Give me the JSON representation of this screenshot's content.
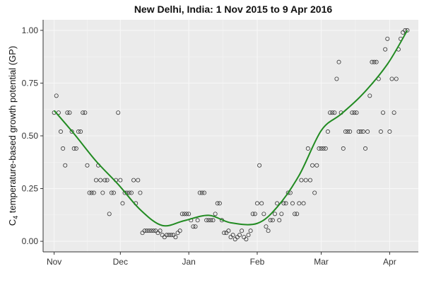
{
  "chart_data": {
    "type": "scatter",
    "title": "New Delhi, India: 1 Nov 2015 to 9 Apr 2016",
    "xlabel": "",
    "ylabel_prefix": "C",
    "ylabel_subscript": "4",
    "ylabel_rest": " temperature-based growth potential (GP)",
    "x_unit": "date",
    "xlim": [
      "2015-10-27",
      "2016-04-14"
    ],
    "ylim": [
      -0.05,
      1.05
    ],
    "x_ticks": [
      {
        "date": "2015-11-01",
        "label": "Nov"
      },
      {
        "date": "2015-12-01",
        "label": "Dec"
      },
      {
        "date": "2016-01-01",
        "label": "Jan"
      },
      {
        "date": "2016-02-01",
        "label": "Feb"
      },
      {
        "date": "2016-03-01",
        "label": "Mar"
      },
      {
        "date": "2016-04-01",
        "label": "Apr"
      }
    ],
    "y_ticks": [
      {
        "value": 0.0,
        "label": "0.00"
      },
      {
        "value": 0.25,
        "label": "0.25"
      },
      {
        "value": 0.5,
        "label": "0.50"
      },
      {
        "value": 0.75,
        "label": "0.75"
      },
      {
        "value": 1.0,
        "label": "1.00"
      }
    ],
    "grid": true,
    "legend": "none",
    "colors": {
      "panel_background": "#ebebeb",
      "grid": "#f7f7f7",
      "points": "#333333",
      "smooth_line": "#228b22",
      "axis": "#333333"
    },
    "points": [
      [
        "2015-11-01",
        0.61
      ],
      [
        "2015-11-02",
        0.69
      ],
      [
        "2015-11-03",
        0.61
      ],
      [
        "2015-11-04",
        0.52
      ],
      [
        "2015-11-05",
        0.44
      ],
      [
        "2015-11-06",
        0.36
      ],
      [
        "2015-11-07",
        0.61
      ],
      [
        "2015-11-08",
        0.61
      ],
      [
        "2015-11-09",
        0.52
      ],
      [
        "2015-11-10",
        0.44
      ],
      [
        "2015-11-11",
        0.44
      ],
      [
        "2015-11-12",
        0.52
      ],
      [
        "2015-11-13",
        0.52
      ],
      [
        "2015-11-14",
        0.61
      ],
      [
        "2015-11-15",
        0.61
      ],
      [
        "2015-11-16",
        0.36
      ],
      [
        "2015-11-17",
        0.23
      ],
      [
        "2015-11-18",
        0.23
      ],
      [
        "2015-11-19",
        0.23
      ],
      [
        "2015-11-20",
        0.29
      ],
      [
        "2015-11-21",
        0.36
      ],
      [
        "2015-11-22",
        0.29
      ],
      [
        "2015-11-23",
        0.23
      ],
      [
        "2015-11-24",
        0.29
      ],
      [
        "2015-11-25",
        0.29
      ],
      [
        "2015-11-26",
        0.13
      ],
      [
        "2015-11-27",
        0.23
      ],
      [
        "2015-11-28",
        0.23
      ],
      [
        "2015-11-29",
        0.29
      ],
      [
        "2015-11-30",
        0.61
      ],
      [
        "2015-12-01",
        0.29
      ],
      [
        "2015-12-02",
        0.18
      ],
      [
        "2015-12-03",
        0.23
      ],
      [
        "2015-12-04",
        0.23
      ],
      [
        "2015-12-05",
        0.23
      ],
      [
        "2015-12-06",
        0.23
      ],
      [
        "2015-12-07",
        0.29
      ],
      [
        "2015-12-08",
        0.18
      ],
      [
        "2015-12-09",
        0.29
      ],
      [
        "2015-12-10",
        0.23
      ],
      [
        "2015-12-11",
        0.04
      ],
      [
        "2015-12-12",
        0.05
      ],
      [
        "2015-12-13",
        0.05
      ],
      [
        "2015-12-14",
        0.05
      ],
      [
        "2015-12-15",
        0.05
      ],
      [
        "2015-12-16",
        0.05
      ],
      [
        "2015-12-17",
        0.05
      ],
      [
        "2015-12-18",
        0.04
      ],
      [
        "2015-12-19",
        0.05
      ],
      [
        "2015-12-20",
        0.03
      ],
      [
        "2015-12-21",
        0.02
      ],
      [
        "2015-12-22",
        0.03
      ],
      [
        "2015-12-23",
        0.03
      ],
      [
        "2015-12-24",
        0.03
      ],
      [
        "2015-12-25",
        0.03
      ],
      [
        "2015-12-26",
        0.02
      ],
      [
        "2015-12-27",
        0.04
      ],
      [
        "2015-12-28",
        0.05
      ],
      [
        "2015-12-29",
        0.13
      ],
      [
        "2015-12-30",
        0.13
      ],
      [
        "2015-12-31",
        0.13
      ],
      [
        "2016-01-01",
        0.13
      ],
      [
        "2016-01-02",
        0.1
      ],
      [
        "2016-01-03",
        0.07
      ],
      [
        "2016-01-04",
        0.07
      ],
      [
        "2016-01-05",
        0.1
      ],
      [
        "2016-01-06",
        0.23
      ],
      [
        "2016-01-07",
        0.23
      ],
      [
        "2016-01-08",
        0.23
      ],
      [
        "2016-01-09",
        0.1
      ],
      [
        "2016-01-10",
        0.1
      ],
      [
        "2016-01-11",
        0.1
      ],
      [
        "2016-01-12",
        0.1
      ],
      [
        "2016-01-13",
        0.13
      ],
      [
        "2016-01-14",
        0.18
      ],
      [
        "2016-01-15",
        0.18
      ],
      [
        "2016-01-16",
        0.1
      ],
      [
        "2016-01-17",
        0.04
      ],
      [
        "2016-01-18",
        0.04
      ],
      [
        "2016-01-19",
        0.05
      ],
      [
        "2016-01-20",
        0.02
      ],
      [
        "2016-01-21",
        0.03
      ],
      [
        "2016-01-22",
        0.01
      ],
      [
        "2016-01-23",
        0.02
      ],
      [
        "2016-01-24",
        0.03
      ],
      [
        "2016-01-25",
        0.05
      ],
      [
        "2016-01-26",
        0.02
      ],
      [
        "2016-01-27",
        0.01
      ],
      [
        "2016-01-28",
        0.03
      ],
      [
        "2016-01-29",
        0.05
      ],
      [
        "2016-01-30",
        0.13
      ],
      [
        "2016-01-31",
        0.13
      ],
      [
        "2016-02-01",
        0.18
      ],
      [
        "2016-02-02",
        0.36
      ],
      [
        "2016-02-03",
        0.18
      ],
      [
        "2016-02-04",
        0.13
      ],
      [
        "2016-02-05",
        0.07
      ],
      [
        "2016-02-06",
        0.05
      ],
      [
        "2016-02-07",
        0.1
      ],
      [
        "2016-02-08",
        0.1
      ],
      [
        "2016-02-09",
        0.13
      ],
      [
        "2016-02-10",
        0.18
      ],
      [
        "2016-02-11",
        0.1
      ],
      [
        "2016-02-12",
        0.13
      ],
      [
        "2016-02-13",
        0.18
      ],
      [
        "2016-02-14",
        0.18
      ],
      [
        "2016-02-15",
        0.23
      ],
      [
        "2016-02-16",
        0.23
      ],
      [
        "2016-02-17",
        0.18
      ],
      [
        "2016-02-18",
        0.13
      ],
      [
        "2016-02-19",
        0.13
      ],
      [
        "2016-02-20",
        0.18
      ],
      [
        "2016-02-21",
        0.29
      ],
      [
        "2016-02-22",
        0.18
      ],
      [
        "2016-02-23",
        0.29
      ],
      [
        "2016-02-24",
        0.44
      ],
      [
        "2016-02-25",
        0.29
      ],
      [
        "2016-02-26",
        0.36
      ],
      [
        "2016-02-27",
        0.23
      ],
      [
        "2016-02-28",
        0.36
      ],
      [
        "2016-02-29",
        0.44
      ],
      [
        "2016-03-01",
        0.44
      ],
      [
        "2016-03-02",
        0.44
      ],
      [
        "2016-03-03",
        0.44
      ],
      [
        "2016-03-04",
        0.52
      ],
      [
        "2016-03-05",
        0.61
      ],
      [
        "2016-03-06",
        0.61
      ],
      [
        "2016-03-07",
        0.61
      ],
      [
        "2016-03-08",
        0.77
      ],
      [
        "2016-03-09",
        0.85
      ],
      [
        "2016-03-10",
        0.61
      ],
      [
        "2016-03-11",
        0.44
      ],
      [
        "2016-03-12",
        0.52
      ],
      [
        "2016-03-13",
        0.52
      ],
      [
        "2016-03-14",
        0.52
      ],
      [
        "2016-03-15",
        0.61
      ],
      [
        "2016-03-16",
        0.61
      ],
      [
        "2016-03-17",
        0.61
      ],
      [
        "2016-03-18",
        0.52
      ],
      [
        "2016-03-19",
        0.52
      ],
      [
        "2016-03-20",
        0.52
      ],
      [
        "2016-03-21",
        0.44
      ],
      [
        "2016-03-22",
        0.52
      ],
      [
        "2016-03-23",
        0.69
      ],
      [
        "2016-03-24",
        0.85
      ],
      [
        "2016-03-25",
        0.85
      ],
      [
        "2016-03-26",
        0.85
      ],
      [
        "2016-03-27",
        0.77
      ],
      [
        "2016-03-28",
        0.52
      ],
      [
        "2016-03-29",
        0.61
      ],
      [
        "2016-03-30",
        0.91
      ],
      [
        "2016-03-31",
        0.96
      ],
      [
        "2016-04-01",
        0.52
      ],
      [
        "2016-04-02",
        0.77
      ],
      [
        "2016-04-03",
        0.61
      ],
      [
        "2016-04-04",
        0.77
      ],
      [
        "2016-04-05",
        0.91
      ],
      [
        "2016-04-06",
        0.96
      ],
      [
        "2016-04-07",
        0.99
      ],
      [
        "2016-04-08",
        1.0
      ],
      [
        "2016-04-09",
        1.0
      ]
    ],
    "smooth_series": [
      [
        "2015-11-01",
        0.62
      ],
      [
        "2015-11-10",
        0.51
      ],
      [
        "2015-11-20",
        0.38
      ],
      [
        "2015-11-30",
        0.27
      ],
      [
        "2015-12-10",
        0.15
      ],
      [
        "2015-12-20",
        0.075
      ],
      [
        "2015-12-30",
        0.098
      ],
      [
        "2016-01-10",
        0.123
      ],
      [
        "2016-01-20",
        0.088
      ],
      [
        "2016-02-01",
        0.085
      ],
      [
        "2016-02-10",
        0.162
      ],
      [
        "2016-02-20",
        0.313
      ],
      [
        "2016-03-01",
        0.525
      ],
      [
        "2016-03-10",
        0.603
      ],
      [
        "2016-03-20",
        0.7
      ],
      [
        "2016-03-31",
        0.84
      ],
      [
        "2016-04-09",
        1.0
      ]
    ]
  }
}
